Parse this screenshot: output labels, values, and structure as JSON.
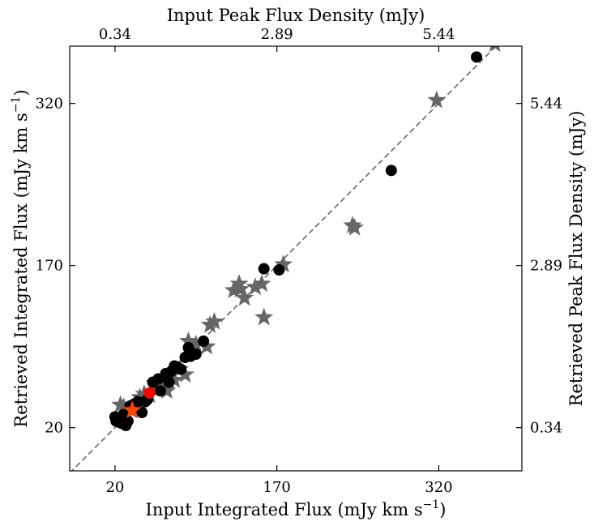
{
  "chart_data": {
    "type": "scatter",
    "title": "",
    "xlabel": "Input Integrated Flux (mJy km s",
    "xlabel_sup": "−1",
    "xlabel_end": ")",
    "ylabel": "Retrieved Integrated Flux (mJy km s",
    "ylabel_sup": "−1",
    "ylabel_end": ")",
    "top_xlabel": "Input Peak Flux Density (mJy)",
    "right_ylabel": "Retrieved Peak Flux Density (mJy)",
    "xlim": [
      -22,
      397
    ],
    "ylim": [
      -20,
      373
    ],
    "x_ticks": [
      20,
      170,
      320
    ],
    "x_tick_labels": [
      "20",
      "170",
      "320"
    ],
    "y_ticks": [
      20,
      170,
      320
    ],
    "y_tick_labels": [
      "20",
      "170",
      "320"
    ],
    "top_ticks": [
      20,
      170,
      320
    ],
    "top_tick_labels": [
      "0.34",
      "2.89",
      "5.44"
    ],
    "right_ticks": [
      20,
      170,
      320
    ],
    "right_tick_labels": [
      "0.34",
      "2.89",
      "5.44"
    ],
    "reference_line": {
      "label": "",
      "slope": 1,
      "intercept": 0,
      "color": "#777777",
      "style": "dashed"
    },
    "grid": false,
    "legend": "none",
    "colors": {
      "circle": "#000000",
      "star": "#666666",
      "highlight_circle": "#ff0000",
      "highlight_star": "#ff4500"
    },
    "series": [
      {
        "marker": "circle",
        "color": "#000000",
        "points": [
          [
            20,
            30
          ],
          [
            21,
            26
          ],
          [
            23,
            28
          ],
          [
            24,
            25
          ],
          [
            26,
            24
          ],
          [
            28,
            32
          ],
          [
            30,
            22
          ],
          [
            32,
            26
          ],
          [
            34,
            40
          ],
          [
            36,
            37
          ],
          [
            38,
            42
          ],
          [
            41,
            44
          ],
          [
            45,
            34
          ],
          [
            48,
            44
          ],
          [
            50,
            46
          ],
          [
            55,
            62
          ],
          [
            60,
            65
          ],
          [
            62,
            54
          ],
          [
            67,
            70
          ],
          [
            70,
            62
          ],
          [
            72,
            72
          ],
          [
            75,
            77
          ],
          [
            78,
            76
          ],
          [
            81,
            74
          ],
          [
            85,
            85
          ],
          [
            88,
            94
          ],
          [
            90,
            86
          ],
          [
            95,
            88
          ],
          [
            102,
            100
          ],
          [
            158,
            167
          ],
          [
            172,
            166
          ],
          [
            276,
            258
          ],
          [
            355,
            363
          ]
        ]
      },
      {
        "marker": "star",
        "color": "#666666",
        "points": [
          [
            25,
            41
          ],
          [
            28,
            39
          ],
          [
            31,
            33
          ],
          [
            35,
            36
          ],
          [
            41,
            42
          ],
          [
            43,
            48
          ],
          [
            47,
            51
          ],
          [
            52,
            50
          ],
          [
            57,
            61
          ],
          [
            60,
            58
          ],
          [
            63,
            59
          ],
          [
            65,
            57
          ],
          [
            68,
            54
          ],
          [
            70,
            62
          ],
          [
            75,
            64
          ],
          [
            80,
            74
          ],
          [
            85,
            69
          ],
          [
            88,
            100
          ],
          [
            95,
            97
          ],
          [
            105,
            95
          ],
          [
            108,
            115
          ],
          [
            112,
            118
          ],
          [
            130,
            147
          ],
          [
            135,
            153
          ],
          [
            136,
            148
          ],
          [
            140,
            140
          ],
          [
            150,
            150
          ],
          [
            156,
            153
          ],
          [
            158,
            122
          ],
          [
            176,
            171
          ],
          [
            240,
            207
          ],
          [
            242,
            205
          ],
          [
            318,
            323
          ],
          [
            372,
            375
          ]
        ]
      },
      {
        "marker": "circle",
        "color": "#ff0000",
        "points": [
          [
            52,
            52
          ]
        ]
      },
      {
        "marker": "star",
        "color": "#ff4500",
        "points": [
          [
            36,
            36
          ]
        ]
      }
    ]
  }
}
